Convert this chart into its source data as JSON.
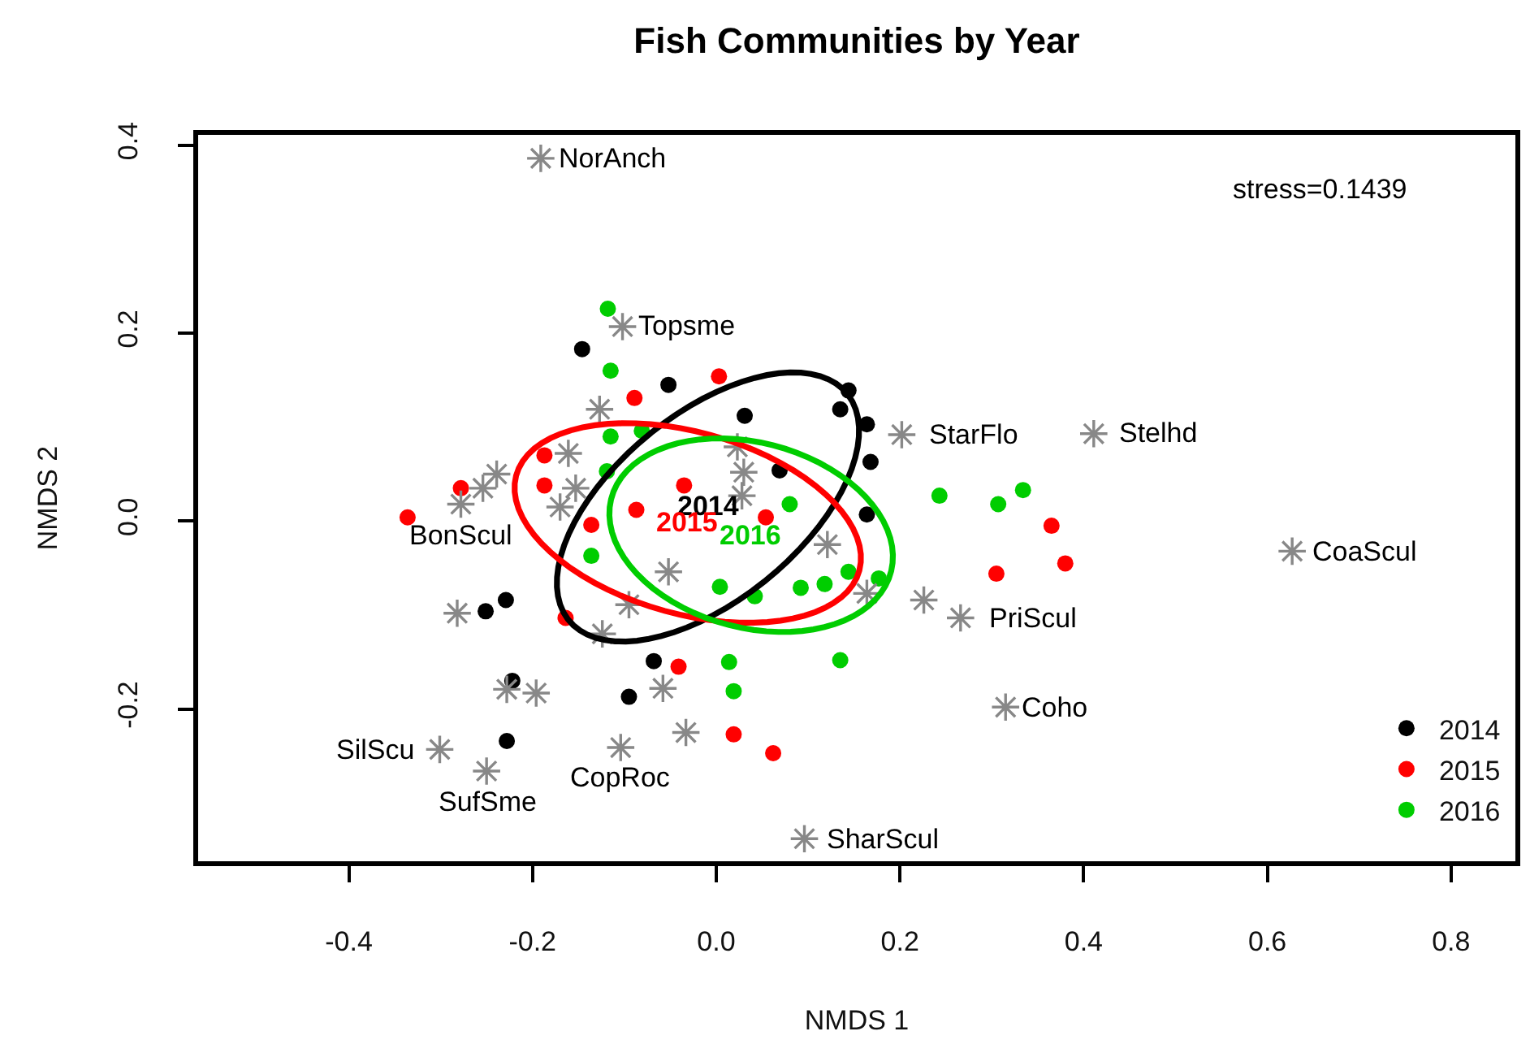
{
  "chart_data": {
    "type": "scatter",
    "title": "Fish Communities by Year",
    "xlabel": "NMDS 1",
    "ylabel": "NMDS 2",
    "xlim": [
      -0.564,
      0.87
    ],
    "xticks": [
      -0.4,
      -0.2,
      {
        "value": 0,
        "label": "0.0"
      },
      0.2,
      0.4,
      0.6,
      0.8
    ],
    "ylim": [
      -0.362,
      0.411
    ],
    "yticks": [
      -0.2,
      {
        "value": 0,
        "label": "0.0"
      },
      0.2,
      0.4
    ],
    "legend": "bottom right",
    "series": [
      {
        "name": "2014",
        "color": "#000000",
        "marker": "circle",
        "x": [
          -0.146,
          -0.052,
          0.031,
          0.144,
          0.135,
          0.164,
          0.168,
          0.069,
          0.164,
          -0.251,
          -0.229,
          -0.222,
          -0.228,
          -0.095,
          -0.068
        ],
        "values": [
          0.183,
          0.145,
          0.112,
          0.139,
          0.119,
          0.103,
          0.063,
          0.054,
          0.007,
          -0.096,
          -0.084,
          -0.17,
          -0.234,
          -0.187,
          -0.149
        ]
      },
      {
        "name": "2015",
        "color": "#ff0000",
        "marker": "circle",
        "x": [
          -0.089,
          -0.278,
          -0.187,
          -0.187,
          -0.336,
          -0.136,
          -0.164,
          -0.087,
          0.003,
          -0.035,
          0.054,
          -0.041,
          0.019,
          0.062,
          0.305,
          0.38,
          0.365
        ],
        "values": [
          0.131,
          0.035,
          0.07,
          0.038,
          0.004,
          -0.004,
          -0.103,
          0.012,
          0.154,
          0.038,
          0.004,
          -0.155,
          -0.227,
          -0.247,
          -0.056,
          -0.045,
          -0.005
        ]
      },
      {
        "name": "2016",
        "color": "#00cd00",
        "marker": "circle",
        "x": [
          -0.118,
          -0.115,
          -0.115,
          -0.119,
          -0.081,
          0.08,
          0.243,
          0.307,
          0.334,
          -0.136,
          0.004,
          0.042,
          0.092,
          0.118,
          0.144,
          0.177,
          0.014,
          0.019,
          0.135
        ],
        "values": [
          0.226,
          0.16,
          0.09,
          0.053,
          0.096,
          0.018,
          0.027,
          0.018,
          0.033,
          -0.037,
          -0.07,
          -0.08,
          -0.071,
          -0.067,
          -0.054,
          -0.061,
          -0.15,
          -0.181,
          -0.148
        ]
      },
      {
        "color": "#888888",
        "marker": "cross",
        "x": [
          -0.191,
          -0.102,
          0.202,
          0.411,
          -0.278,
          0.627,
          0.266,
          0.315,
          0.096,
          -0.104,
          -0.301,
          -0.25,
          -0.127,
          -0.161,
          -0.239,
          -0.254,
          -0.153,
          -0.17,
          -0.282,
          -0.228,
          -0.196,
          -0.095,
          -0.124,
          -0.052,
          0.121,
          0.164,
          0.226,
          -0.058,
          -0.033,
          0.028,
          0.023,
          0.03
        ],
        "values": [
          0.386,
          0.207,
          0.092,
          0.093,
          0.018,
          -0.032,
          -0.103,
          -0.198,
          -0.338,
          -0.241,
          -0.243,
          -0.266,
          0.119,
          0.072,
          0.05,
          0.035,
          0.035,
          0.015,
          -0.098,
          -0.179,
          -0.183,
          -0.089,
          -0.12,
          -0.054,
          -0.025,
          -0.077,
          -0.084,
          -0.178,
          -0.225,
          0.027,
          0.079,
          0.052
        ]
      }
    ],
    "annotations": [
      "stress=0.1439",
      {
        "text": "NorAnch",
        "x": -0.191,
        "y": 0.386
      },
      {
        "text": "Topsme",
        "x": -0.102,
        "y": 0.207
      },
      {
        "text": "StarFlo",
        "x": 0.202,
        "y": 0.092
      },
      {
        "text": "Stelhd",
        "x": 0.411,
        "y": 0.093
      },
      {
        "text": "BonScul",
        "x": -0.278,
        "y": 0.018
      },
      {
        "text": "CoaScul",
        "x": 0.627,
        "y": -0.032
      },
      {
        "text": "PriScul",
        "x": 0.266,
        "y": -0.103
      },
      {
        "text": "Coho",
        "x": 0.315,
        "y": -0.198
      },
      {
        "text": "SharScul",
        "x": 0.096,
        "y": -0.338
      },
      {
        "text": "CopRoc",
        "x": -0.104,
        "y": -0.241
      },
      {
        "text": "SilScu",
        "x": -0.301,
        "y": -0.243
      },
      {
        "text": "SufSme",
        "x": -0.25,
        "y": -0.266
      }
    ]
  }
}
